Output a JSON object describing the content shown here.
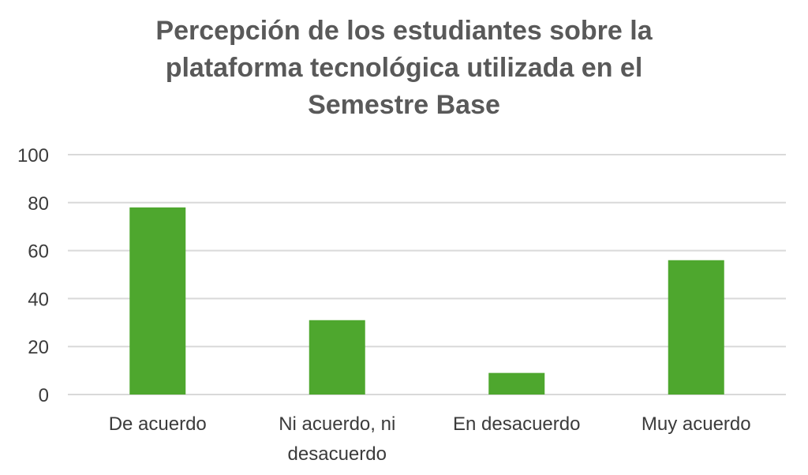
{
  "chart_data": {
    "type": "bar",
    "title_lines": [
      "Percepción de los estudiantes sobre la",
      "plataforma tecnológica utilizada en el",
      "Semestre Base"
    ],
    "categories": [
      [
        "De acuerdo"
      ],
      [
        "Ni acuerdo, ni",
        "desacuerdo"
      ],
      [
        "En desacuerdo"
      ],
      [
        "Muy acuerdo"
      ]
    ],
    "values": [
      78,
      31,
      9,
      56
    ],
    "ylim": [
      0,
      100
    ],
    "yticks": [
      "0",
      "20",
      "40",
      "60",
      "80",
      "100"
    ],
    "grid": true,
    "legend": "none",
    "colors": {
      "bar": "#4ea72e",
      "grid": "#d9d9d9",
      "axis": "#d9d9d9",
      "title": "#595959",
      "text": "#3b3b3b"
    }
  }
}
